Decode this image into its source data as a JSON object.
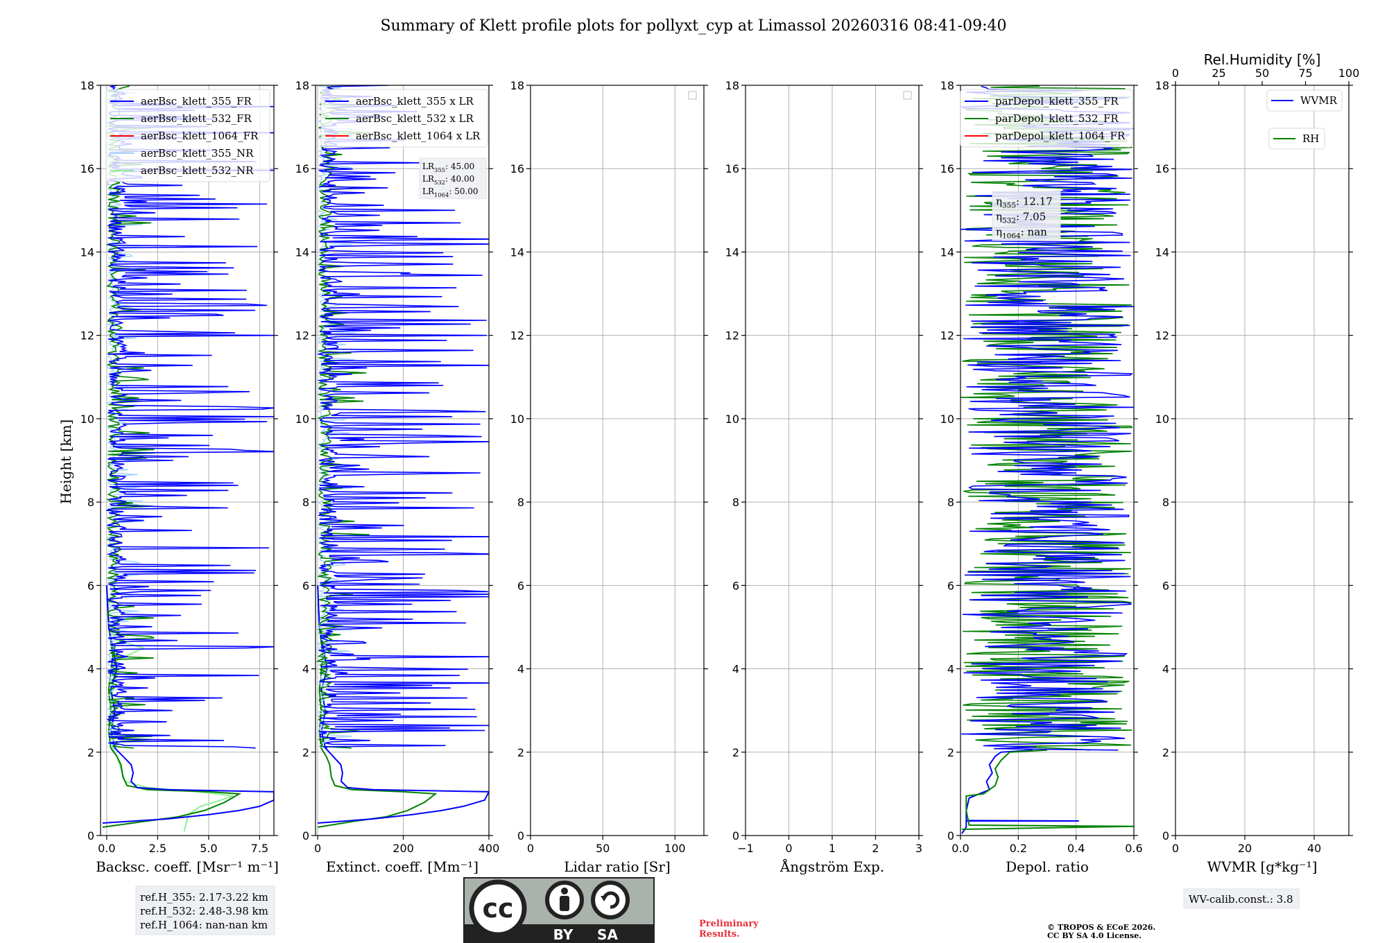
{
  "title": "Summary of Klett profile plots for pollyxt_cyp at Limassol 20260316 08:41-09:40",
  "colors": {
    "blue": "#0000ff",
    "green": "#008000",
    "red": "#ff0000",
    "lightblue": "#aad4ff",
    "lightgreen": "#90ee90",
    "grid": "#b0b0b0",
    "preliminary": "#e8303a"
  },
  "y_axis": {
    "label": "Height [km]",
    "ylim": [
      0,
      18
    ],
    "ticks": [
      "0",
      "2",
      "4",
      "6",
      "8",
      "10",
      "12",
      "14",
      "16",
      "18"
    ]
  },
  "chart_data": [
    {
      "type": "line",
      "id": "bsc",
      "xlabel": "Backsc. coeff. [Msr⁻¹ m⁻¹]",
      "xlim": [
        -0.3,
        8.2
      ],
      "xticks": [
        {
          "v": 0,
          "t": "0.0"
        },
        {
          "v": 2.5,
          "t": "2.5"
        },
        {
          "v": 5,
          "t": "5.0"
        },
        {
          "v": 7.5,
          "t": "7.5"
        }
      ],
      "legend": [
        "aerBsc_klett_355_FR",
        "aerBsc_klett_532_FR",
        "aerBsc_klett_1064_FR",
        "aerBsc_klett_355_NR",
        "aerBsc_klett_532_NR"
      ],
      "series": [
        {
          "name": "aerBsc_klett_532_NR",
          "color": "lightgreen",
          "points": [
            [
              3.8,
              0.1
            ],
            [
              3.9,
              0.3
            ],
            [
              4.0,
              0.5
            ],
            [
              4.6,
              0.7
            ],
            [
              5.6,
              0.85
            ],
            [
              6.2,
              0.95
            ],
            [
              4.5,
              1.05
            ],
            [
              2.0,
              1.15
            ],
            [
              0.9,
              1.3
            ],
            [
              0.7,
              1.6
            ],
            [
              0.5,
              1.9
            ],
            [
              0.3,
              2.1
            ],
            [
              0.4,
              2.5
            ],
            [
              0.2,
              3.0
            ],
            [
              0.3,
              3.6
            ],
            [
              0.5,
              4.2
            ],
            [
              1.8,
              4.5
            ],
            [
              0.4,
              4.7
            ],
            [
              0.1,
              5.2
            ],
            [
              0.0,
              6.0
            ]
          ]
        },
        {
          "name": "aerBsc_klett_532_FR",
          "color": "green",
          "points": [
            [
              -0.2,
              0.2
            ],
            [
              2.0,
              0.35
            ],
            [
              3.5,
              0.45
            ],
            [
              4.8,
              0.6
            ],
            [
              5.8,
              0.8
            ],
            [
              6.5,
              1.0
            ],
            [
              5.0,
              1.05
            ],
            [
              2.0,
              1.1
            ],
            [
              1.0,
              1.2
            ],
            [
              0.8,
              1.4
            ],
            [
              0.7,
              1.7
            ],
            [
              0.5,
              1.9
            ],
            [
              0.2,
              2.1
            ],
            [
              0.1,
              2.5
            ],
            [
              0.2,
              3.0
            ],
            [
              0.1,
              3.5
            ],
            [
              0.3,
              4.3
            ],
            [
              0.1,
              5.0
            ],
            [
              0.0,
              6.0
            ]
          ]
        },
        {
          "name": "aerBsc_klett_355_FR",
          "color": "blue",
          "points": [
            [
              -0.2,
              0.3
            ],
            [
              3.0,
              0.4
            ],
            [
              5.0,
              0.5
            ],
            [
              6.5,
              0.6
            ],
            [
              7.5,
              0.7
            ],
            [
              8.2,
              0.85
            ],
            [
              8.2,
              1.05
            ],
            [
              3.0,
              1.1
            ],
            [
              1.5,
              1.15
            ],
            [
              1.2,
              1.3
            ],
            [
              1.3,
              1.5
            ],
            [
              1.2,
              1.7
            ],
            [
              0.8,
              1.9
            ],
            [
              0.4,
              2.1
            ],
            [
              0.2,
              2.5
            ],
            [
              0.4,
              3.0
            ],
            [
              0.2,
              3.5
            ],
            [
              0.5,
              4.0
            ],
            [
              0.3,
              4.5
            ],
            [
              0.1,
              5.0
            ],
            [
              0.0,
              6.0
            ]
          ]
        }
      ]
    },
    {
      "type": "line",
      "id": "ext",
      "xlabel": "Extinct. coeff. [Mm⁻¹]",
      "xlim": [
        -5,
        400
      ],
      "xticks": [
        {
          "v": 0,
          "t": "0"
        },
        {
          "v": 200,
          "t": "200"
        },
        {
          "v": 400,
          "t": "400"
        }
      ],
      "legend": [
        "aerBsc_klett_355 x LR",
        "aerBsc_klett_532 x LR",
        "aerBsc_klett_1064 x LR"
      ],
      "lr_text": [
        "LR355: 45.00",
        "LR532: 40.00",
        "LR1064: 50.00"
      ],
      "series": [
        {
          "name": "aerBsc_klett_532 x LR",
          "color": "green",
          "points": [
            [
              0,
              0.2
            ],
            [
              90,
              0.35
            ],
            [
              160,
              0.45
            ],
            [
              210,
              0.6
            ],
            [
              250,
              0.8
            ],
            [
              275,
              1.0
            ],
            [
              200,
              1.05
            ],
            [
              80,
              1.1
            ],
            [
              40,
              1.2
            ],
            [
              32,
              1.4
            ],
            [
              28,
              1.7
            ],
            [
              20,
              1.9
            ],
            [
              8,
              2.1
            ],
            [
              4,
              2.5
            ],
            [
              8,
              3.0
            ],
            [
              4,
              3.5
            ],
            [
              12,
              4.3
            ],
            [
              4,
              5.0
            ],
            [
              0,
              6.0
            ]
          ]
        },
        {
          "name": "aerBsc_klett_355 x LR",
          "color": "blue",
          "points": [
            [
              0,
              0.3
            ],
            [
              130,
              0.4
            ],
            [
              220,
              0.5
            ],
            [
              290,
              0.6
            ],
            [
              340,
              0.7
            ],
            [
              390,
              0.85
            ],
            [
              400,
              1.05
            ],
            [
              130,
              1.1
            ],
            [
              70,
              1.15
            ],
            [
              55,
              1.3
            ],
            [
              58,
              1.5
            ],
            [
              54,
              1.7
            ],
            [
              36,
              1.9
            ],
            [
              18,
              2.1
            ],
            [
              9,
              2.5
            ],
            [
              18,
              3.0
            ],
            [
              9,
              3.5
            ],
            [
              22,
              4.0
            ],
            [
              13,
              4.5
            ],
            [
              4,
              5.0
            ],
            [
              0,
              6.0
            ]
          ]
        }
      ]
    },
    {
      "type": "line",
      "id": "lr",
      "xlabel": "Lidar ratio [Sr]",
      "xlim": [
        0,
        120
      ],
      "xticks": [
        {
          "v": 0,
          "t": "0"
        },
        {
          "v": 50,
          "t": "50"
        },
        {
          "v": 100,
          "t": "100"
        }
      ],
      "series": []
    },
    {
      "type": "line",
      "id": "ang",
      "xlabel": "Ångström Exp.",
      "xlim": [
        -1,
        3
      ],
      "xticks": [
        {
          "v": -1,
          "t": "−1"
        },
        {
          "v": 0,
          "t": "0"
        },
        {
          "v": 1,
          "t": "1"
        },
        {
          "v": 2,
          "t": "2"
        },
        {
          "v": 3,
          "t": "3"
        }
      ],
      "series": []
    },
    {
      "type": "line",
      "id": "dep",
      "xlabel": "Depol. ratio",
      "xlim": [
        0,
        0.6
      ],
      "xticks": [
        {
          "v": 0,
          "t": "0.0"
        },
        {
          "v": 0.2,
          "t": "0.2"
        },
        {
          "v": 0.4,
          "t": "0.4"
        },
        {
          "v": 0.6,
          "t": "0.6"
        }
      ],
      "legend": [
        "parDepol_klett_355_FR",
        "parDepol_klett_532_FR",
        "parDepol_klett_1064_FR"
      ],
      "eta_text": [
        "η355: 12.17",
        "η532: 7.05",
        "η1064: nan"
      ],
      "series": [
        {
          "name": "parDepol_klett_355_FR",
          "color": "blue",
          "points": [
            [
              0.005,
              0.05
            ],
            [
              0.02,
              0.2
            ],
            [
              0.02,
              0.35
            ],
            [
              0.41,
              0.35
            ],
            [
              0.02,
              0.36
            ],
            [
              0.02,
              0.6
            ],
            [
              0.03,
              0.9
            ],
            [
              0.1,
              1.1
            ],
            [
              0.09,
              1.3
            ],
            [
              0.11,
              1.5
            ],
            [
              0.1,
              1.7
            ],
            [
              0.12,
              1.9
            ],
            [
              0.14,
              2.0
            ],
            [
              0.25,
              2.05
            ]
          ]
        },
        {
          "name": "parDepol_klett_532_FR",
          "color": "green",
          "points": [
            [
              0.005,
              0.15
            ],
            [
              0.6,
              0.22
            ],
            [
              0.03,
              0.25
            ],
            [
              0.02,
              0.6
            ],
            [
              0.02,
              0.95
            ],
            [
              0.08,
              1.0
            ],
            [
              0.12,
              1.2
            ],
            [
              0.13,
              1.4
            ],
            [
              0.12,
              1.6
            ],
            [
              0.14,
              1.8
            ],
            [
              0.17,
              2.0
            ],
            [
              0.3,
              2.05
            ]
          ]
        }
      ]
    },
    {
      "type": "line",
      "id": "wv",
      "xlabel": "WVMR [g*kg⁻¹]",
      "xlim": [
        0,
        50
      ],
      "xticks": [
        {
          "v": 0,
          "t": "0"
        },
        {
          "v": 20,
          "t": "20"
        },
        {
          "v": 40,
          "t": "40"
        }
      ],
      "top_xlabel": "Rel.Humidity [%]",
      "top_xlim": [
        0,
        100
      ],
      "top_xticks": [
        {
          "v": 0,
          "t": "0"
        },
        {
          "v": 25,
          "t": "25"
        },
        {
          "v": 50,
          "t": "50"
        },
        {
          "v": 75,
          "t": "75"
        },
        {
          "v": 100,
          "t": "100"
        }
      ],
      "legend": [
        "WVMR",
        "RH"
      ],
      "series": []
    }
  ],
  "ref_heights": [
    "ref.H_355: 2.17-3.22 km",
    "ref.H_532: 2.48-3.98 km",
    "ref.H_1064: nan-nan km"
  ],
  "license_badge": {
    "icon": "cc",
    "by": "BY",
    "sa": "SA"
  },
  "preliminary": [
    "Preliminary",
    "Results."
  ],
  "copyright": [
    "© TROPOS & ECoE 2026.",
    "CC BY SA 4.0 License."
  ],
  "wv_calib": "WV-calib.const.: 3.8"
}
